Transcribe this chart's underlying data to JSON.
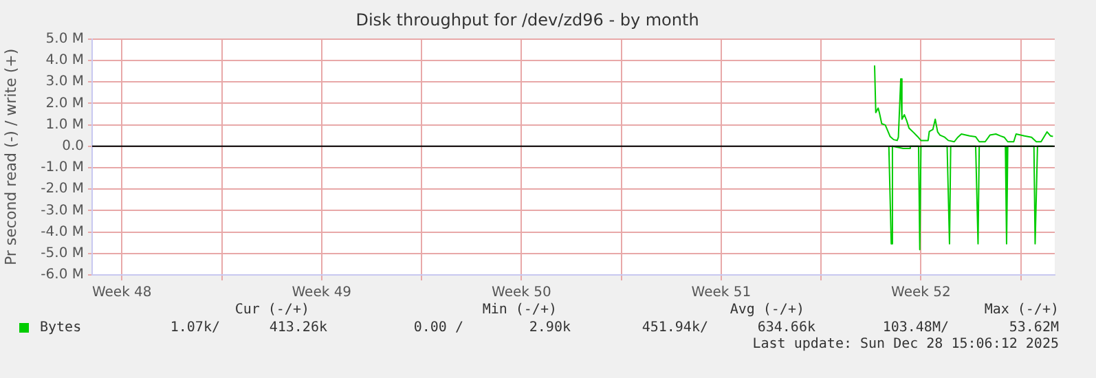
{
  "chart_data": {
    "type": "line",
    "title": "Disk throughput for /dev/zd96 - by month",
    "ylabel": "Pr second read (-) / write (+)",
    "xlim": [
      "2025-11-24T23:00",
      "2025-12-28T16:30"
    ],
    "xticks": [
      {
        "value": "2025-11-26T00:00",
        "label": "Week 48"
      },
      {
        "value": "2025-11-29T12:00",
        "label": null
      },
      {
        "value": "2025-12-03T00:00",
        "label": "Week 49"
      },
      {
        "value": "2025-12-06T12:00",
        "label": null
      },
      {
        "value": "2025-12-10T00:00",
        "label": "Week 50"
      },
      {
        "value": "2025-12-13T12:00",
        "label": null
      },
      {
        "value": "2025-12-17T00:00",
        "label": "Week 51"
      },
      {
        "value": "2025-12-20T12:00",
        "label": null
      },
      {
        "value": "2025-12-24T00:00",
        "label": "Week 52"
      },
      {
        "value": "2025-12-27T12:00",
        "label": null
      }
    ],
    "ylim": [
      -6,
      5
    ],
    "yticks": [
      {
        "value": -6,
        "label": "-6.0 M"
      },
      {
        "value": -5,
        "label": "-5.0 M"
      },
      {
        "value": -4,
        "label": "-4.0 M"
      },
      {
        "value": -3,
        "label": "-3.0 M"
      },
      {
        "value": -2,
        "label": "-2.0 M"
      },
      {
        "value": -1,
        "label": "-1.0 M"
      },
      {
        "value": 0,
        "label": "0.0"
      },
      {
        "value": 1,
        "label": "1.0 M"
      },
      {
        "value": 2,
        "label": "2.0 M"
      },
      {
        "value": 3,
        "label": "3.0 M"
      },
      {
        "value": 4,
        "label": "4.0 M"
      },
      {
        "value": 5,
        "label": "5.0 M"
      }
    ],
    "grid": true,
    "legend": "bottom",
    "line_style": "solid",
    "marker": "none",
    "ref_lines": [
      {
        "axis": "y",
        "value": 0,
        "color": "#000000"
      }
    ],
    "series": [
      {
        "name": "Bytes",
        "color": "#00cc00",
        "x": [
          "2025-12-22T09:00",
          "2025-12-22T10:00",
          "2025-12-22T12:00",
          "2025-12-22T13:00",
          "2025-12-22T15:00",
          "2025-12-22T18:00",
          "2025-12-22T20:00",
          "2025-12-22T22:00",
          "2025-12-23T01:00",
          "2025-12-23T04:00",
          "2025-12-23T05:00",
          "2025-12-23T07:00",
          "2025-12-23T08:00",
          "2025-12-23T10:00",
          "2025-12-23T12:00",
          "2025-12-23T14:00",
          "2025-12-23T18:00",
          "2025-12-23T21:00",
          "2025-12-24T00:00",
          "2025-12-24T06:00",
          "2025-12-24T07:00",
          "2025-12-24T10:00",
          "2025-12-24T12:00",
          "2025-12-24T14:00",
          "2025-12-24T16:00",
          "2025-12-24T20:00",
          "2025-12-24T23:00",
          "2025-12-25T04:00",
          "2025-12-25T07:00",
          "2025-12-25T10:00",
          "2025-12-25T17:00",
          "2025-12-25T22:00",
          "2025-12-26T01:00",
          "2025-12-26T06:00",
          "2025-12-26T10:00",
          "2025-12-26T15:00",
          "2025-12-26T19:00",
          "2025-12-26T22:00",
          "2025-12-27T01:00",
          "2025-12-27T06:00",
          "2025-12-27T08:00",
          "2025-12-27T15:00",
          "2025-12-27T21:00",
          "2025-12-28T01:00",
          "2025-12-28T05:00",
          "2025-12-28T10:00",
          "2025-12-28T13:00",
          "2025-12-28T15:00"
        ],
        "values": [
          3.77,
          1.57,
          1.78,
          1.57,
          1.05,
          0.99,
          0.73,
          0.46,
          0.31,
          0.27,
          0.42,
          3.14,
          1.26,
          1.47,
          1.19,
          0.84,
          0.63,
          0.46,
          0.27,
          0.27,
          0.69,
          0.78,
          1.26,
          0.67,
          0.52,
          0.42,
          0.27,
          0.21,
          0.42,
          0.57,
          0.48,
          0.44,
          0.21,
          0.21,
          0.52,
          0.57,
          0.48,
          0.42,
          0.21,
          0.21,
          0.57,
          0.48,
          0.42,
          0.21,
          0.21,
          0.67,
          0.48,
          0.46
        ]
      },
      {
        "color": "#00cc00",
        "x": [
          "2025-12-22T21:00",
          "2025-12-22T23:00",
          "2025-12-23T00:00",
          "2025-12-23T09:00",
          "2025-12-23T14:00",
          "2025-12-23T15:00",
          "2025-12-23T22:00",
          "2025-12-23T23:00",
          "2025-12-24T00:00",
          "2025-12-24T22:00",
          "2025-12-25T00:00",
          "2025-12-25T01:00",
          "2025-12-25T22:00",
          "2025-12-26T00:00",
          "2025-12-26T01:00",
          "2025-12-26T23:00",
          "2025-12-27T00:00",
          "2025-12-27T01:00",
          "2025-12-27T23:00",
          "2025-12-28T00:00",
          "2025-12-28T02:00",
          "2025-12-28T15:00"
        ],
        "values": [
          0,
          -4.55,
          0,
          -0.1,
          -0.1,
          0,
          0,
          -4.82,
          0,
          0,
          -4.55,
          0,
          0,
          -4.55,
          0,
          0,
          -4.55,
          0,
          0,
          -4.55,
          0,
          0
        ]
      }
    ],
    "annotations": [
      "Cur (-/+)",
      "Min (-/+)",
      "Avg (-/+)",
      "Max (-/+)",
      "1.07k/",
      "413.26k",
      "0.00 /",
      "2.90k",
      "451.94k/",
      "634.66k",
      "103.48M/",
      "53.62M",
      "Last update: Sun Dec 28 15:06:12 2025"
    ]
  }
}
